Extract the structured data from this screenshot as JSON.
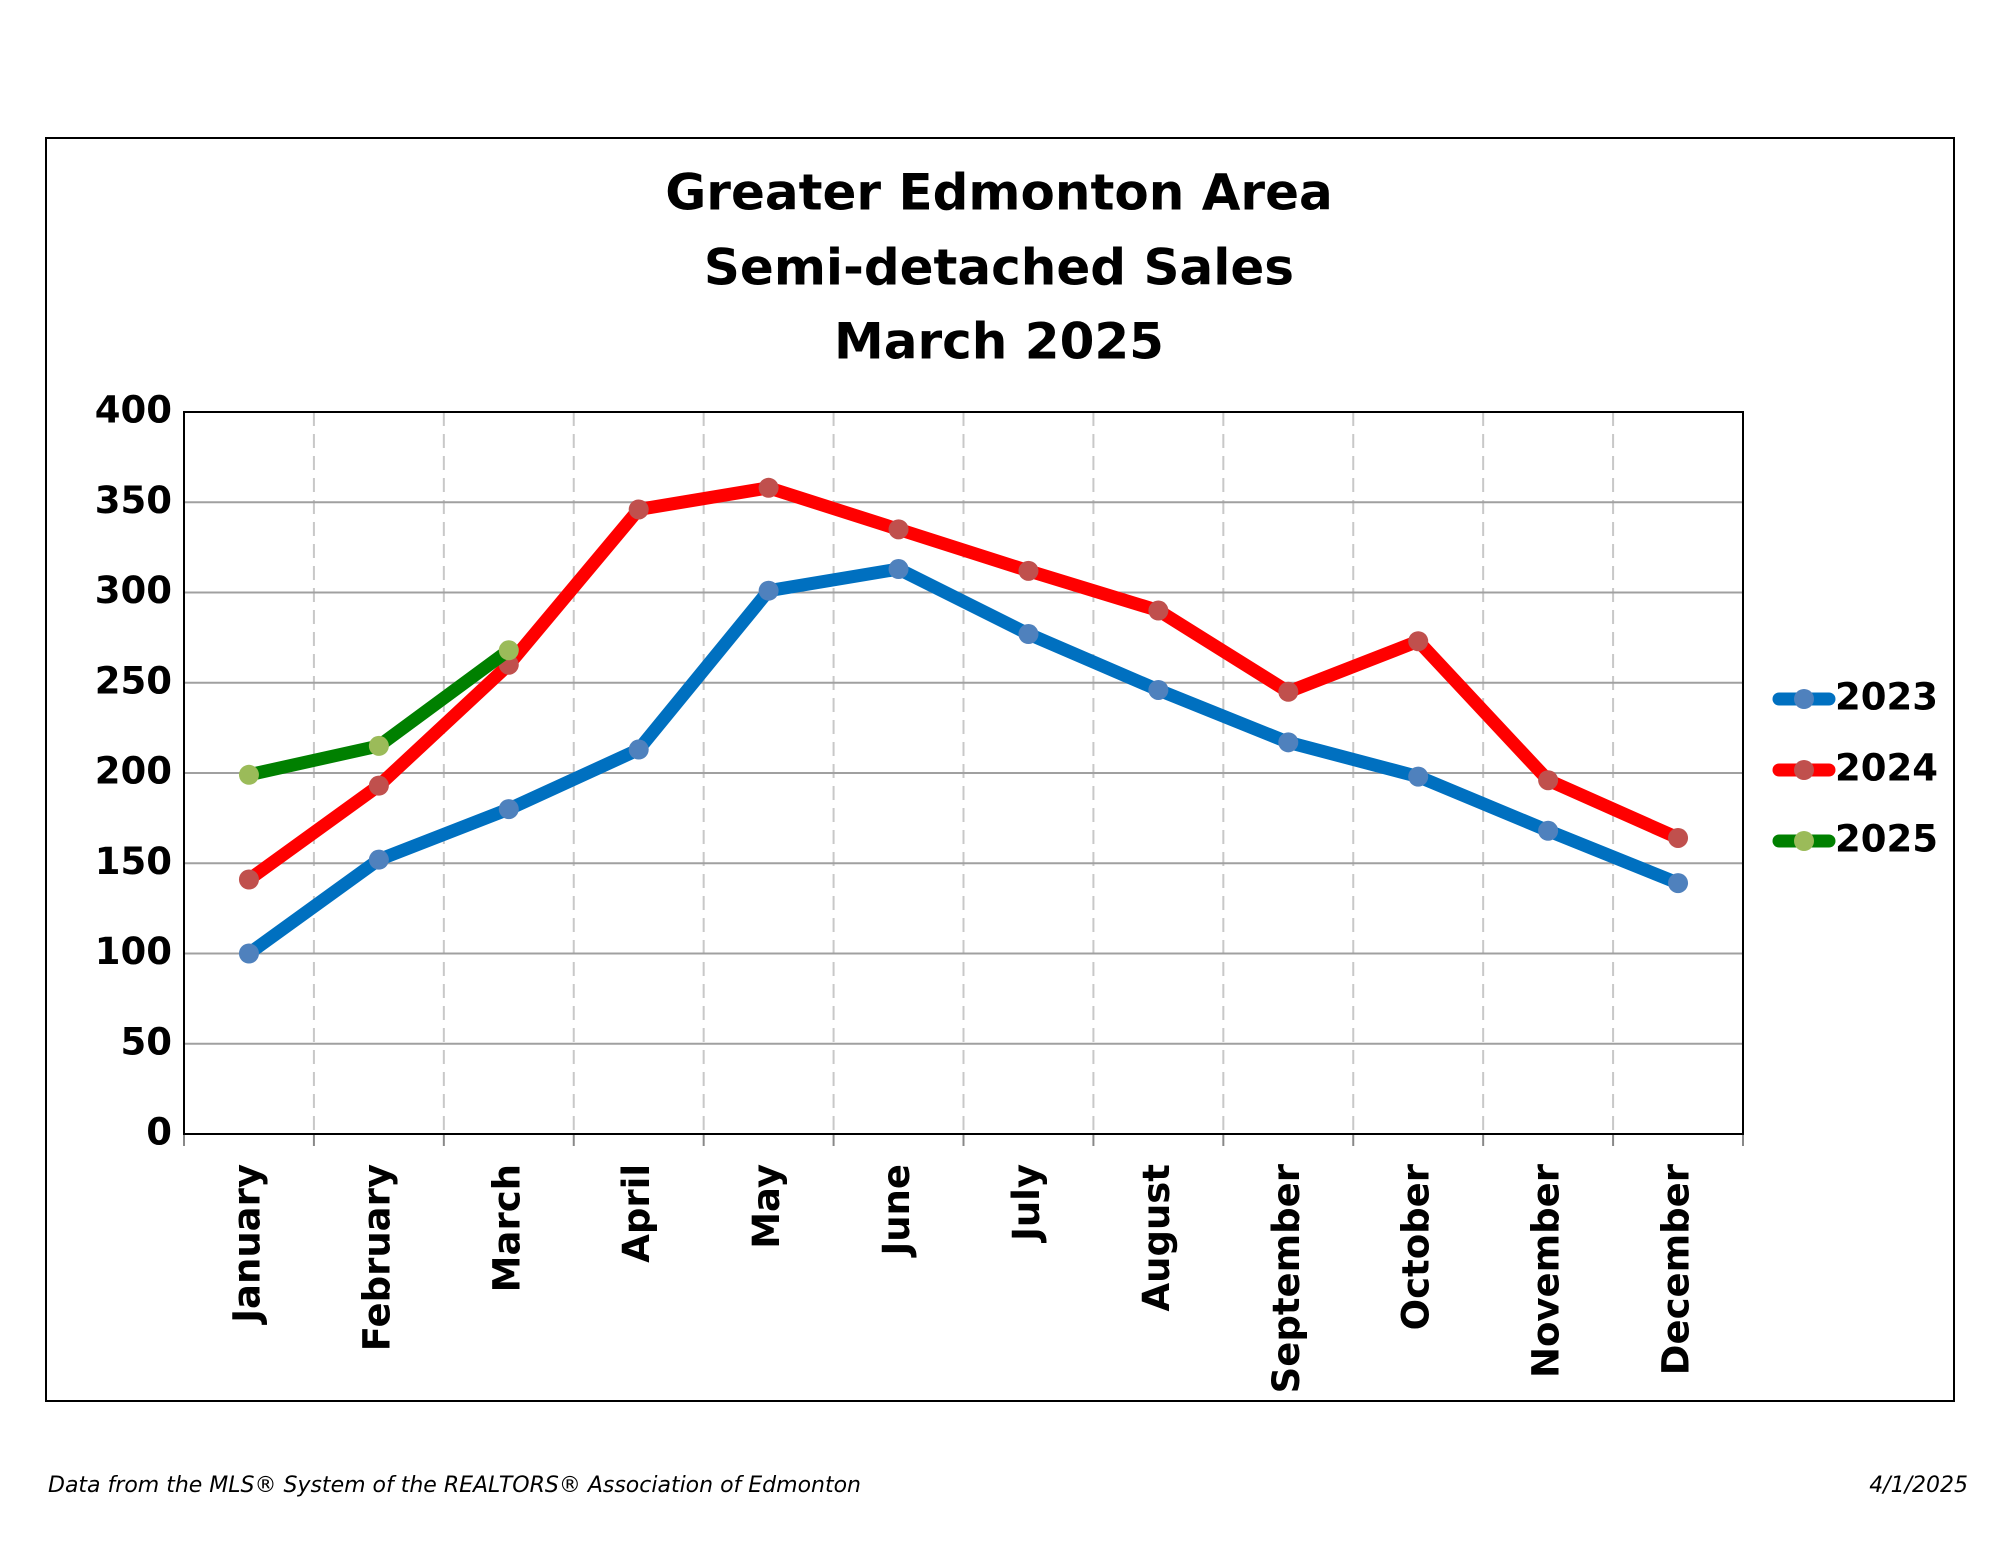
{
  "chart_data": {
    "type": "line",
    "title": [
      "Greater Edmonton Area",
      "Semi-detached Sales",
      "March 2025"
    ],
    "categories": [
      "January",
      "February",
      "March",
      "April",
      "May",
      "June",
      "July",
      "August",
      "September",
      "October",
      "November",
      "December"
    ],
    "series": [
      {
        "name": "2023",
        "color": "#0070c0",
        "marker_color": "#4f81bd",
        "values": [
          100,
          152,
          180,
          213,
          301,
          313,
          277,
          246,
          217,
          198,
          168,
          139
        ]
      },
      {
        "name": "2024",
        "color": "#ff0000",
        "marker_color": "#c0504d",
        "values": [
          141,
          193,
          260,
          346,
          358,
          335,
          312,
          290,
          245,
          273,
          196,
          164
        ]
      },
      {
        "name": "2025",
        "color": "#008000",
        "marker_color": "#9bbb59",
        "values": [
          199,
          215,
          268,
          null,
          null,
          null,
          null,
          null,
          null,
          null,
          null,
          null
        ]
      }
    ],
    "ylim": [
      0,
      400
    ],
    "yticks": [
      0,
      50,
      100,
      150,
      200,
      250,
      300,
      350,
      400
    ],
    "grid": true,
    "legend": "right"
  },
  "footer": {
    "source": "Data from the MLS® System of the REALTORS® Association of Edmonton",
    "date": "4/1/2025"
  }
}
